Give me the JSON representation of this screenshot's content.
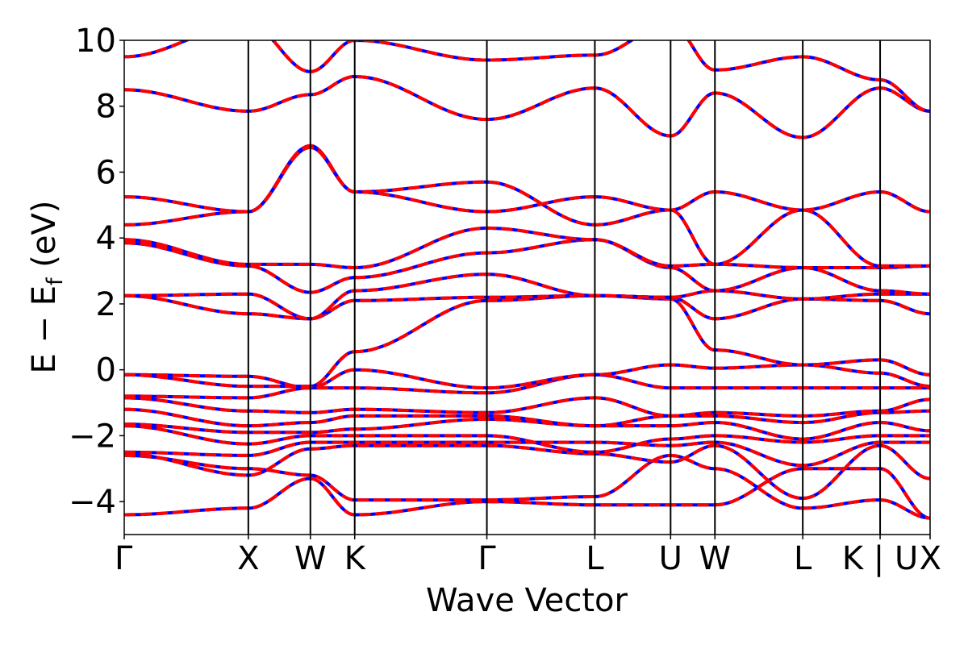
{
  "chart_data": {
    "type": "line",
    "title": "",
    "xlabel": "Wave Vector",
    "ylabel": "E − E",
    "ylabel_sub": "f",
    "ylabel_unit": " (eV)",
    "ylim": [
      -5,
      10
    ],
    "yticks": [
      -4,
      -2,
      0,
      2,
      4,
      6,
      8,
      10
    ],
    "ytick_labels": [
      "−4",
      "−2",
      "0",
      "2",
      "4",
      "6",
      "8",
      "10"
    ],
    "xlim": [
      0,
      10
    ],
    "high_symmetry_points": [
      {
        "label": "Γ",
        "k": 0.0
      },
      {
        "label": "X",
        "k": 1.54
      },
      {
        "label": "W",
        "k": 2.31
      },
      {
        "label": "K",
        "k": 2.86
      },
      {
        "label": "Γ",
        "k": 4.5
      },
      {
        "label": "L",
        "k": 5.84
      },
      {
        "label": "U",
        "k": 6.78
      },
      {
        "label": "W",
        "k": 7.33
      },
      {
        "label": "L",
        "k": 8.42
      },
      {
        "label": "K | U",
        "k": 9.38
      },
      {
        "label": "X",
        "k": 10.0
      }
    ],
    "line_colors": {
      "series_a": "#0000ff",
      "series_b": "#ff0000"
    },
    "grid": false,
    "bands": [
      [
        -4.4,
        -4.2,
        -3.3,
        -4.4,
        -4.0,
        -4.1,
        -4.1,
        -4.1,
        -3.0,
        -3.0,
        -4.5
      ],
      [
        -2.6,
        -3.0,
        -3.2,
        -3.95,
        -3.95,
        -3.85,
        -2.6,
        -3.0,
        -4.2,
        -3.95,
        -4.5
      ],
      [
        -2.55,
        -3.2,
        -2.4,
        -2.3,
        -2.3,
        -2.55,
        -2.8,
        -2.3,
        -3.9,
        -2.3,
        -3.3
      ],
      [
        -2.5,
        -2.6,
        -2.2,
        -2.2,
        -2.2,
        -2.2,
        -2.3,
        -2.2,
        -2.9,
        -2.2,
        -2.2
      ],
      [
        -1.7,
        -2.25,
        -2.0,
        -2.0,
        -2.0,
        -2.5,
        -2.1,
        -2.0,
        -2.2,
        -2.0,
        -2.0
      ],
      [
        -1.65,
        -1.9,
        -1.9,
        -1.8,
        -1.5,
        -1.7,
        -1.7,
        -1.6,
        -2.1,
        -1.6,
        -1.85
      ],
      [
        -1.2,
        -1.7,
        -1.6,
        -1.4,
        -1.4,
        -1.7,
        -1.4,
        -1.4,
        -1.6,
        -1.3,
        -1.25
      ],
      [
        -0.85,
        -1.25,
        -1.3,
        -1.2,
        -1.3,
        -0.85,
        -1.4,
        -1.3,
        -1.4,
        -1.25,
        -0.9
      ],
      [
        -0.8,
        -0.85,
        -0.55,
        -0.55,
        -0.7,
        -0.15,
        -0.55,
        -0.55,
        -0.55,
        -0.55,
        -0.55
      ],
      [
        -0.15,
        -0.2,
        -0.55,
        -0.0,
        -0.55,
        -0.15,
        0.15,
        0.05,
        0.15,
        -0.1,
        -0.5
      ],
      [
        -0.15,
        -0.5,
        -0.5,
        0.55,
        2.1,
        2.25,
        2.15,
        0.6,
        0.15,
        0.3,
        -0.15
      ],
      [
        2.25,
        1.7,
        1.55,
        2.1,
        2.2,
        2.25,
        2.2,
        1.55,
        2.15,
        2.1,
        1.7
      ],
      [
        2.25,
        2.3,
        1.55,
        2.4,
        2.9,
        2.25,
        2.2,
        2.4,
        2.15,
        2.3,
        2.3
      ],
      [
        3.85,
        3.15,
        2.35,
        2.8,
        3.55,
        3.95,
        3.1,
        2.4,
        3.1,
        2.4,
        2.3
      ],
      [
        3.95,
        3.2,
        3.2,
        3.1,
        4.3,
        3.95,
        3.15,
        3.2,
        3.1,
        3.1,
        3.15
      ],
      [
        4.4,
        4.8,
        6.8,
        5.4,
        5.7,
        4.4,
        4.85,
        3.2,
        4.85,
        3.15,
        3.15
      ],
      [
        5.25,
        4.8,
        6.75,
        5.4,
        4.8,
        5.25,
        4.85,
        5.4,
        4.85,
        5.4,
        4.8
      ],
      [
        8.5,
        7.85,
        8.35,
        8.9,
        7.6,
        8.55,
        7.1,
        8.4,
        7.05,
        8.55,
        7.85
      ],
      [
        9.5,
        10.5,
        9.05,
        10.0,
        9.4,
        9.55,
        10.5,
        9.1,
        9.5,
        8.8,
        7.85
      ]
    ]
  }
}
